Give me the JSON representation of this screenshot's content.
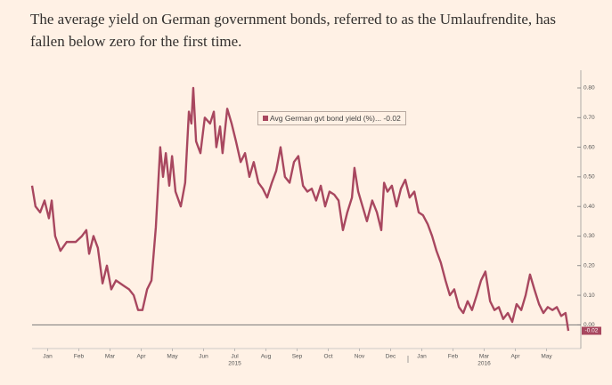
{
  "chart_data": {
    "type": "line",
    "title": "The average yield on German government bonds, referred to as the Umlaufrendite, has fallen below zero for the first time.",
    "x": [
      0.0,
      0.11,
      0.26,
      0.4,
      0.54,
      0.63,
      0.74,
      0.91,
      1.11,
      1.4,
      1.6,
      1.74,
      1.83,
      1.97,
      2.11,
      2.26,
      2.4,
      2.54,
      2.69,
      2.83,
      2.97,
      3.11,
      3.26,
      3.4,
      3.54,
      3.69,
      3.83,
      3.97,
      4.11,
      4.2,
      4.29,
      4.4,
      4.49,
      4.6,
      4.77,
      4.91,
      5.03,
      5.11,
      5.17,
      5.26,
      5.4,
      5.54,
      5.71,
      5.83,
      5.91,
      6.03,
      6.11,
      6.26,
      6.4,
      6.54,
      6.69,
      6.83,
      6.97,
      7.11,
      7.26,
      7.4,
      7.54,
      7.69,
      7.83,
      7.97,
      8.11,
      8.26,
      8.4,
      8.54,
      8.69,
      8.83,
      8.97,
      9.11,
      9.26,
      9.4,
      9.54,
      9.69,
      9.83,
      9.97,
      10.11,
      10.26,
      10.34,
      10.46,
      10.6,
      10.74,
      10.91,
      11.06,
      11.2,
      11.29,
      11.4,
      11.54,
      11.69,
      11.83,
      11.97,
      12.11,
      12.26,
      12.4,
      12.54,
      12.69,
      12.83,
      12.97,
      13.11,
      13.26,
      13.4,
      13.54,
      13.69,
      13.83,
      13.97,
      14.11,
      14.26,
      14.4,
      14.54,
      14.69,
      14.83,
      14.97,
      15.11,
      15.26,
      15.4,
      15.54,
      15.69,
      15.83,
      15.97,
      16.11,
      16.26,
      16.4,
      16.54,
      16.69,
      16.83,
      16.97,
      17.11,
      17.2
    ],
    "series": [
      {
        "name": "Avg German gvt bond yield (%)...",
        "color": "#a8475f",
        "values": [
          0.47,
          0.4,
          0.38,
          0.42,
          0.36,
          0.42,
          0.3,
          0.25,
          0.28,
          0.28,
          0.3,
          0.32,
          0.24,
          0.3,
          0.26,
          0.14,
          0.2,
          0.12,
          0.15,
          0.14,
          0.13,
          0.12,
          0.1,
          0.05,
          0.05,
          0.12,
          0.15,
          0.33,
          0.6,
          0.5,
          0.58,
          0.47,
          0.57,
          0.45,
          0.4,
          0.48,
          0.72,
          0.68,
          0.8,
          0.62,
          0.58,
          0.7,
          0.68,
          0.72,
          0.6,
          0.67,
          0.58,
          0.73,
          0.68,
          0.62,
          0.55,
          0.58,
          0.5,
          0.55,
          0.48,
          0.46,
          0.43,
          0.48,
          0.52,
          0.6,
          0.5,
          0.48,
          0.55,
          0.57,
          0.47,
          0.45,
          0.46,
          0.42,
          0.47,
          0.4,
          0.45,
          0.44,
          0.42,
          0.32,
          0.38,
          0.43,
          0.53,
          0.45,
          0.4,
          0.35,
          0.42,
          0.38,
          0.32,
          0.48,
          0.45,
          0.47,
          0.4,
          0.46,
          0.49,
          0.43,
          0.45,
          0.38,
          0.37,
          0.34,
          0.3,
          0.25,
          0.21,
          0.15,
          0.1,
          0.12,
          0.06,
          0.04,
          0.08,
          0.05,
          0.1,
          0.15,
          0.18,
          0.08,
          0.05,
          0.06,
          0.02,
          0.04,
          0.01,
          0.07,
          0.05,
          0.1,
          0.17,
          0.12,
          0.07,
          0.04,
          0.06,
          0.05,
          0.06,
          0.03,
          0.04,
          -0.02
        ]
      }
    ],
    "xlim": [
      0,
      17.6
    ],
    "xticks": [
      {
        "value": 0.5,
        "label": "Jan"
      },
      {
        "value": 1.5,
        "label": "Feb"
      },
      {
        "value": 2.5,
        "label": "Mar"
      },
      {
        "value": 3.5,
        "label": "Apr"
      },
      {
        "value": 4.5,
        "label": "May"
      },
      {
        "value": 5.5,
        "label": "Jun"
      },
      {
        "value": 6.5,
        "label": "Jul"
      },
      {
        "value": 7.5,
        "label": "Aug"
      },
      {
        "value": 8.5,
        "label": "Sep"
      },
      {
        "value": 9.5,
        "label": "Oct"
      },
      {
        "value": 10.5,
        "label": "Nov"
      },
      {
        "value": 11.5,
        "label": "Dec"
      },
      {
        "value": 12.5,
        "label": "Jan"
      },
      {
        "value": 13.5,
        "label": "Feb"
      },
      {
        "value": 14.5,
        "label": "Mar"
      },
      {
        "value": 15.5,
        "label": "Apr"
      },
      {
        "value": 16.5,
        "label": "May"
      }
    ],
    "year_labels": [
      {
        "value": 6.5,
        "label": "2015"
      },
      {
        "value": 14.5,
        "label": "2016"
      }
    ],
    "ylim": [
      -0.08,
      0.86
    ],
    "yticks": [
      {
        "value": 0,
        "label": "0.00"
      },
      {
        "value": 0.1,
        "label": "0.10"
      },
      {
        "value": 0.2,
        "label": "0.20"
      },
      {
        "value": 0.3,
        "label": "0.30"
      },
      {
        "value": 0.4,
        "label": "0.40"
      },
      {
        "value": 0.5,
        "label": "0.50"
      },
      {
        "value": 0.6,
        "label": "0.60"
      },
      {
        "value": 0.7,
        "label": "0.70"
      },
      {
        "value": 0.8,
        "label": "0.80"
      }
    ],
    "y_axis_side": "right",
    "grid": false
  }
}
